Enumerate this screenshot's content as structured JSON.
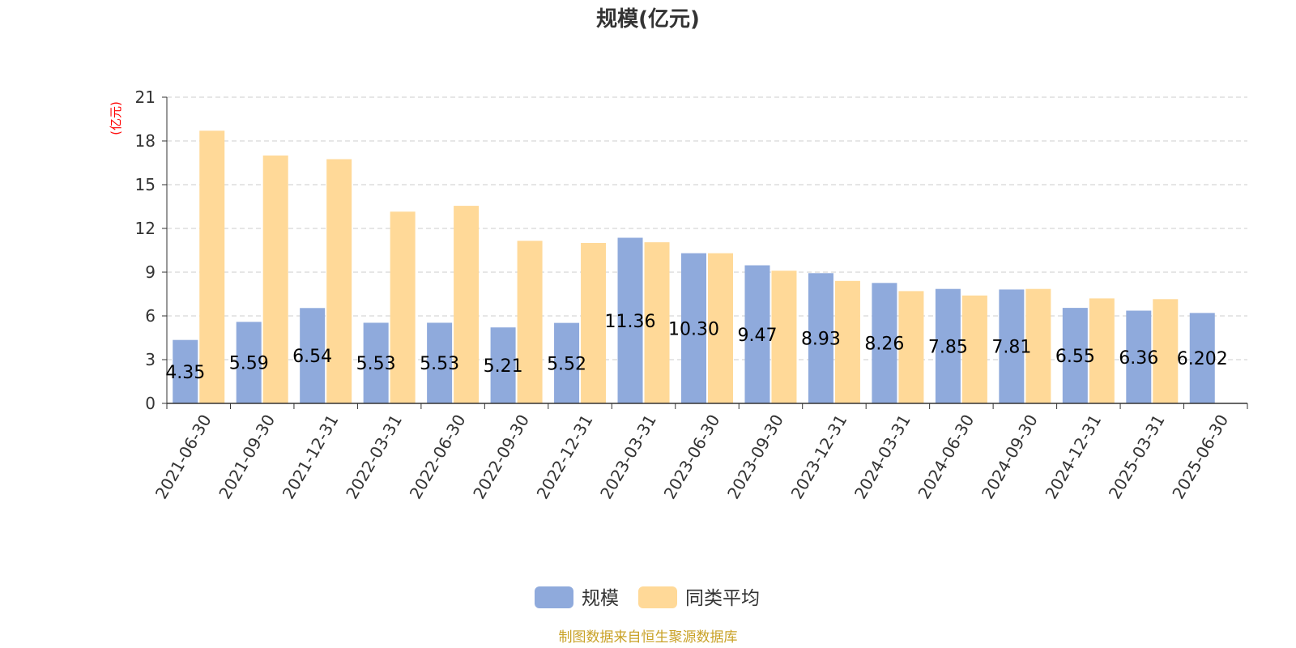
{
  "chart_data": {
    "type": "bar",
    "title": "规模(亿元)",
    "ylabel": "(亿元)",
    "ylim": [
      0,
      21
    ],
    "yticks": [
      0,
      3,
      6,
      9,
      12,
      15,
      18,
      21
    ],
    "grid": true,
    "legend_position": "bottom",
    "categories": [
      "2021-06-30",
      "2021-09-30",
      "2021-12-31",
      "2022-03-31",
      "2022-06-30",
      "2022-09-30",
      "2022-12-31",
      "2023-03-31",
      "2023-06-30",
      "2023-09-30",
      "2023-12-31",
      "2024-03-31",
      "2024-06-30",
      "2024-09-30",
      "2024-12-31",
      "2025-03-31",
      "2025-06-30"
    ],
    "series": [
      {
        "name": "规模",
        "color": "#8faadc",
        "values": [
          4.35,
          5.59,
          6.54,
          5.53,
          5.53,
          5.21,
          5.52,
          11.36,
          10.3,
          9.47,
          8.93,
          8.26,
          7.85,
          7.81,
          6.55,
          6.36,
          6.202
        ],
        "labels": [
          "4.35",
          "5.59",
          "6.54",
          "5.53",
          "5.53",
          "5.21",
          "5.52",
          "11.36",
          "10.30",
          "9.47",
          "8.93",
          "8.26",
          "7.85",
          "7.81",
          "6.55",
          "6.36",
          "6.202"
        ]
      },
      {
        "name": "同类平均",
        "color": "#ffd998",
        "values": [
          18.7,
          17.0,
          16.75,
          13.15,
          13.55,
          11.15,
          11.0,
          11.05,
          10.3,
          9.1,
          8.4,
          7.7,
          7.4,
          7.85,
          7.2,
          7.15,
          null
        ]
      }
    ]
  },
  "footer": {
    "source": "制图数据来自恒生聚源数据库"
  }
}
